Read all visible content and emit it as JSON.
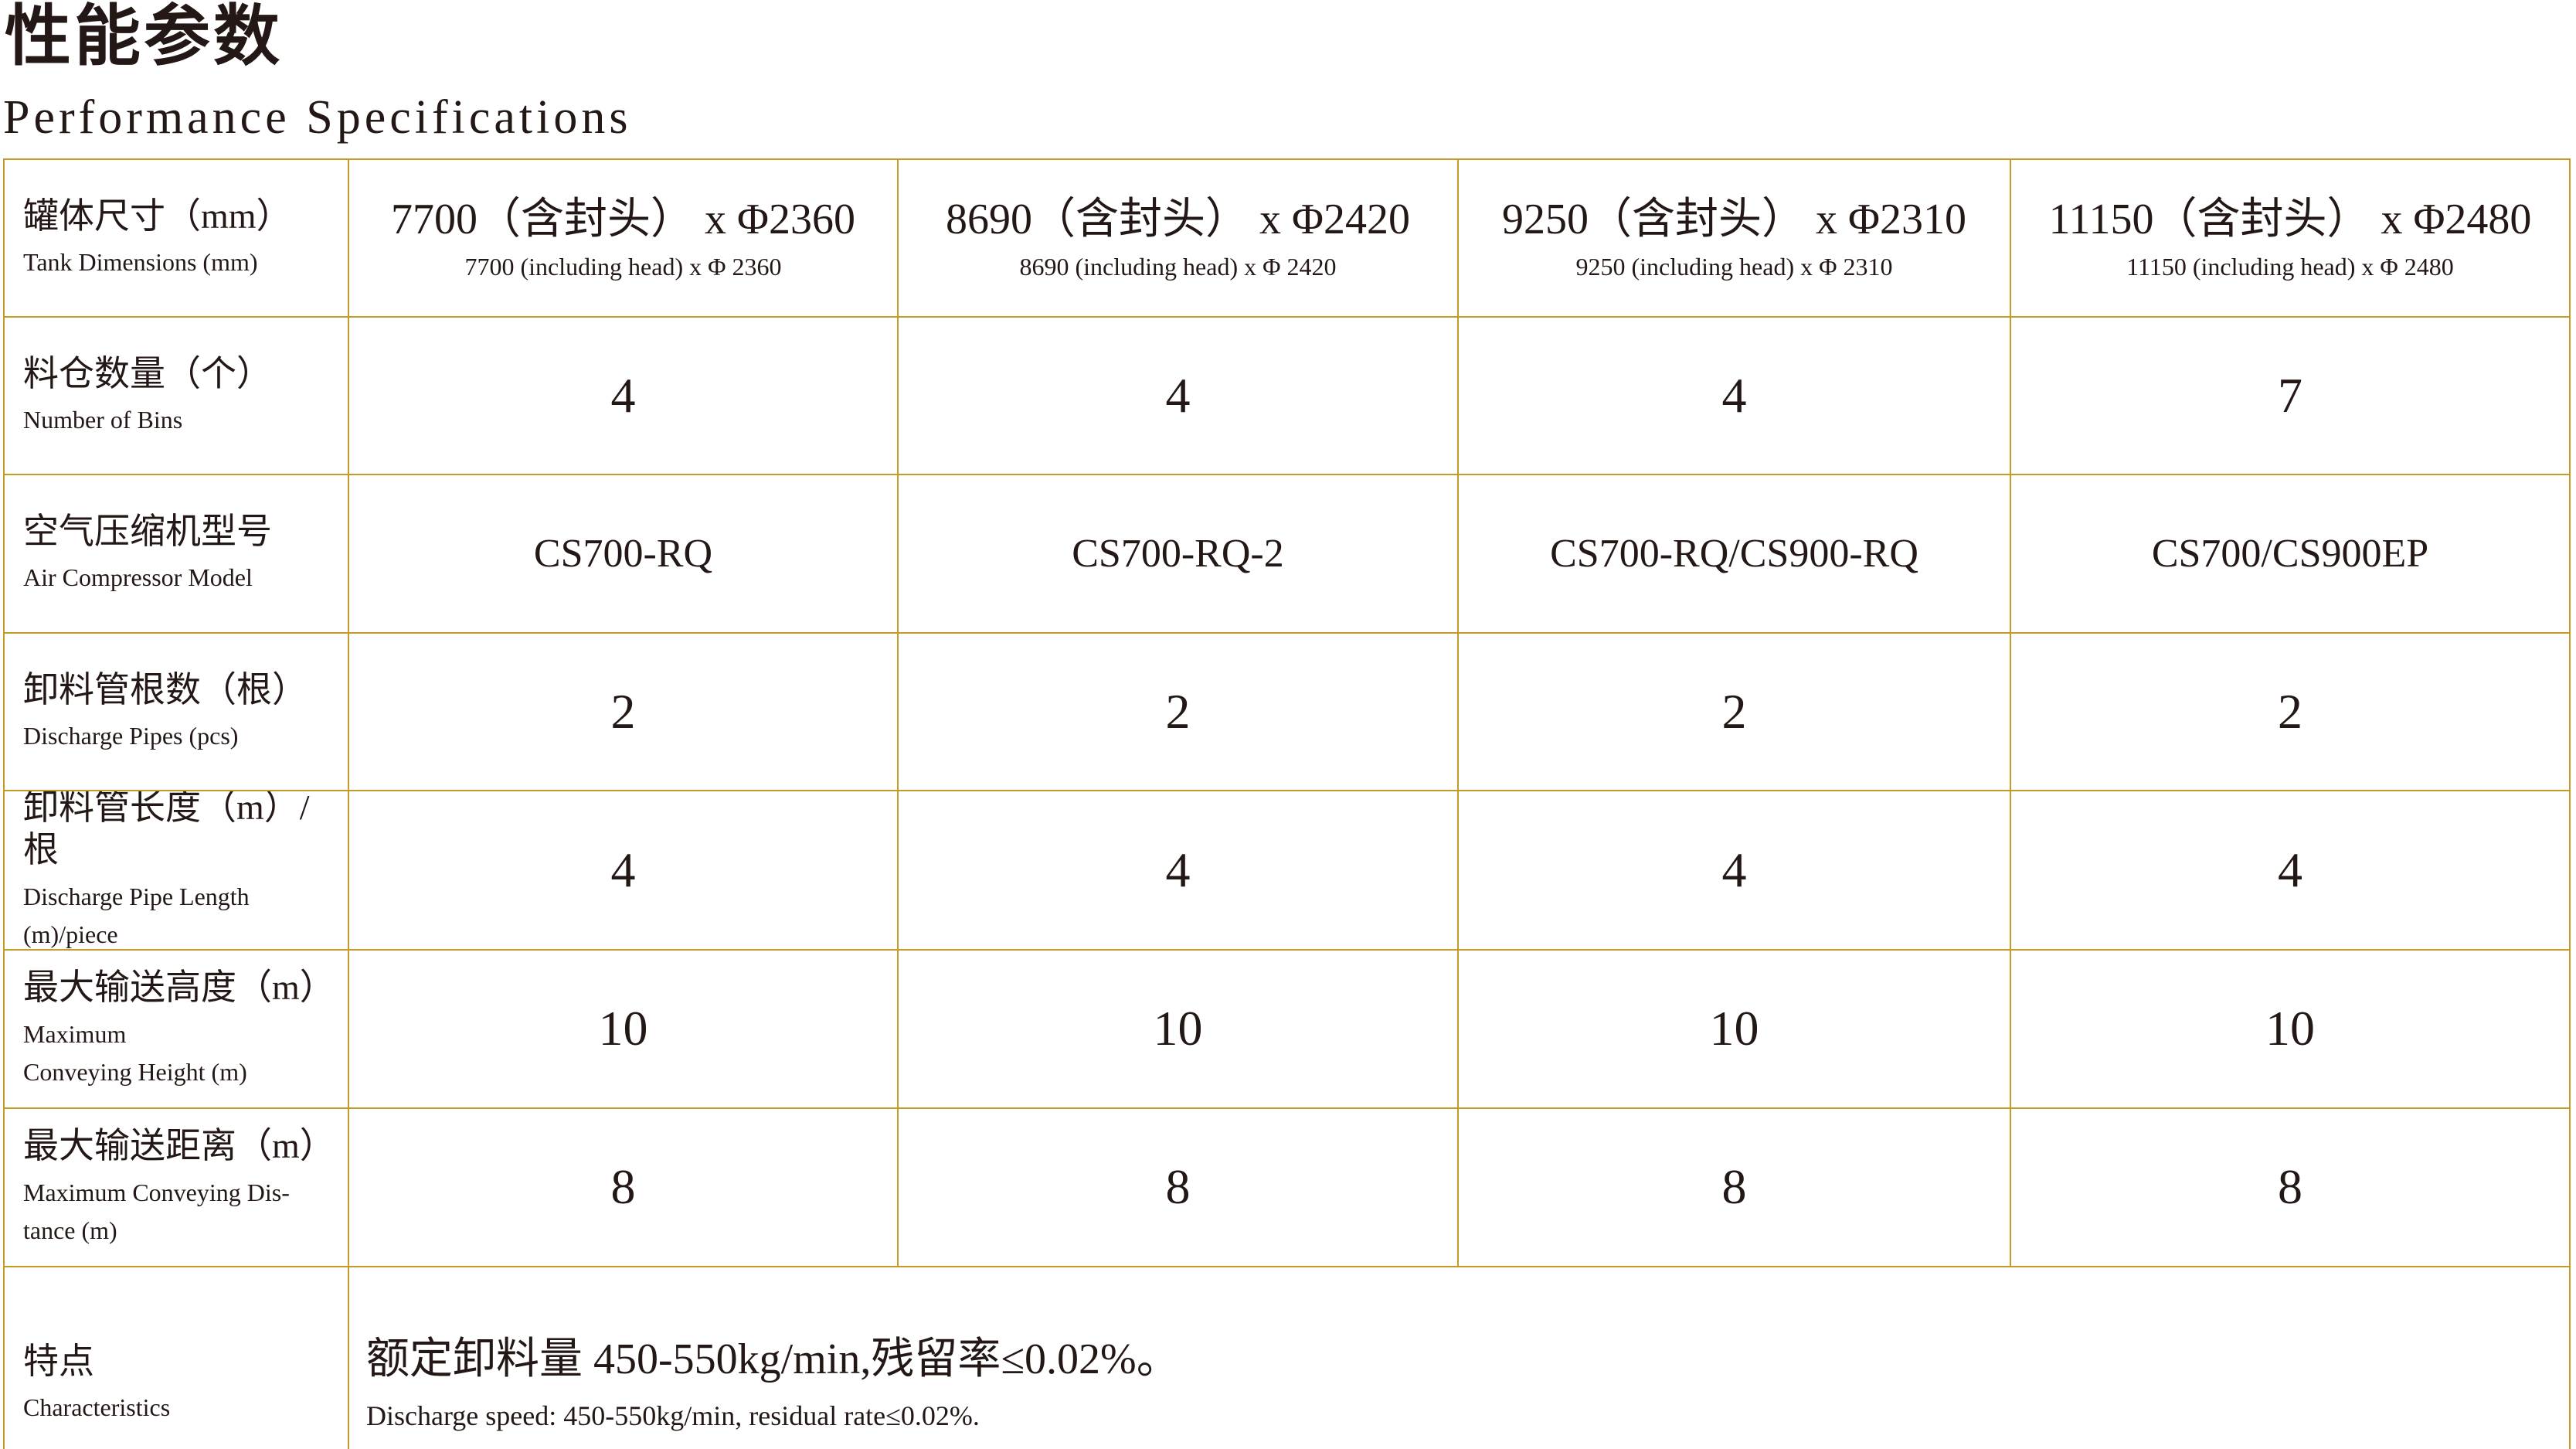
{
  "page": {
    "title_zh": "性能参数",
    "title_en": "Performance Specifications"
  },
  "colors": {
    "border_gold": "#C49B25",
    "text_ink": "#231815"
  },
  "table": {
    "rows": [
      {
        "label_zh": "罐体尺寸（mm）",
        "label_en_lines": [
          "Tank Dimensions (mm)"
        ],
        "cells": [
          {
            "main": "7700（含封头） x Φ2360",
            "sub": "7700 (including head) x Φ 2360"
          },
          {
            "main": "8690（含封头） x Φ2420",
            "sub": "8690 (including head) x Φ 2420"
          },
          {
            "main": "9250（含封头） x Φ2310",
            "sub": "9250 (including head) x Φ 2310"
          },
          {
            "main": "11150（含封头） x Φ2480",
            "sub": "11150 (including head) x Φ 2480"
          }
        ]
      },
      {
        "label_zh": "料仓数量（个）",
        "label_en_lines": [
          "Number of Bins"
        ],
        "cells": [
          {
            "main": "4"
          },
          {
            "main": "4"
          },
          {
            "main": "4"
          },
          {
            "main": "7"
          }
        ]
      },
      {
        "label_zh": "空气压缩机型号",
        "label_en_lines": [
          "Air Compressor Model"
        ],
        "cells": [
          {
            "main": "CS700-RQ"
          },
          {
            "main": "CS700-RQ-2"
          },
          {
            "main": "CS700-RQ/CS900-RQ"
          },
          {
            "main": "CS700/CS900EP"
          }
        ]
      },
      {
        "label_zh": "卸料管根数（根）",
        "label_en_lines": [
          "Discharge Pipes (pcs)"
        ],
        "cells": [
          {
            "main": "2"
          },
          {
            "main": "2"
          },
          {
            "main": "2"
          },
          {
            "main": "2"
          }
        ]
      },
      {
        "label_zh": "卸料管长度（m）/根",
        "label_en_lines": [
          "Discharge Pipe Length",
          "(m)/piece"
        ],
        "cells": [
          {
            "main": "4"
          },
          {
            "main": "4"
          },
          {
            "main": "4"
          },
          {
            "main": "4"
          }
        ]
      },
      {
        "label_zh": "最大输送高度（m）",
        "label_en_lines": [
          "Maximum",
          "Conveying Height (m)"
        ],
        "cells": [
          {
            "main": "10"
          },
          {
            "main": "10"
          },
          {
            "main": "10"
          },
          {
            "main": "10"
          }
        ]
      },
      {
        "label_zh": "最大输送距离（m）",
        "label_en_lines": [
          "Maximum Conveying Dis-",
          "tance (m)"
        ],
        "cells": [
          {
            "main": "8"
          },
          {
            "main": "8"
          },
          {
            "main": "8"
          },
          {
            "main": "8"
          }
        ]
      },
      {
        "label_zh": "特点",
        "label_en_lines": [
          "Characteristics"
        ],
        "span_cell": {
          "main": "额定卸料量 450-550kg/min,残留率≤0.02%。",
          "sub": "Discharge speed: 450-550kg/min, residual rate≤0.02%."
        }
      }
    ]
  }
}
